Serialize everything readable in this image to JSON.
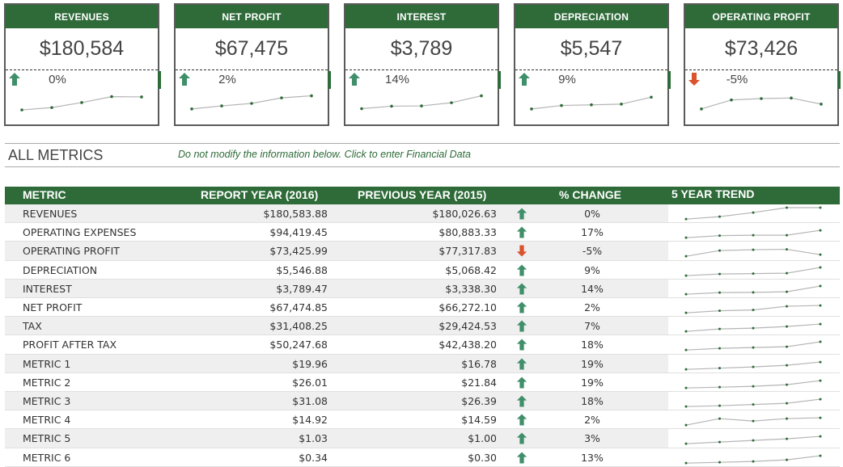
{
  "cards": [
    {
      "title": "REVENUES",
      "value": "$180,584",
      "pct": "0%",
      "dir": "up",
      "trend": [
        2.3,
        4.0,
        7.6,
        11.9,
        11.7
      ]
    },
    {
      "title": "NET PROFIT",
      "value": "$67,475",
      "pct": "2%",
      "dir": "up",
      "trend": [
        3.0,
        5.2,
        7.0,
        11.0,
        12.5
      ]
    },
    {
      "title": "INTEREST",
      "value": "$3,789",
      "pct": "14%",
      "dir": "up",
      "trend": [
        3.2,
        5.0,
        5.2,
        7.5,
        12.5
      ]
    },
    {
      "title": "DEPRECIATION",
      "value": "$5,547",
      "pct": "9%",
      "dir": "up",
      "trend": [
        3.0,
        5.5,
        6.0,
        6.5,
        11.5
      ]
    },
    {
      "title": "OPERATING PROFIT",
      "value": "$73,426",
      "pct": "-5%",
      "dir": "down",
      "trend": [
        3.0,
        9.5,
        10.5,
        10.9,
        6.5
      ]
    }
  ],
  "section": {
    "title": "ALL METRICS",
    "note": "Do not modify the information below. Click to enter Financial Data"
  },
  "table": {
    "headers": {
      "metric": "METRIC",
      "report": "REPORT YEAR (2016)",
      "previous": "PREVIOUS YEAR (2015)",
      "change": "% CHANGE",
      "trend": "5 YEAR TREND"
    },
    "rows": [
      {
        "metric": "REVENUES",
        "report": "$180,583.88",
        "previous": "$180,026.63",
        "dir": "up",
        "pct": "0%",
        "trend": [
          1,
          4,
          9,
          15,
          15
        ]
      },
      {
        "metric": "OPERATING EXPENSES",
        "report": "$94,419.45",
        "previous": "$80,883.33",
        "dir": "up",
        "pct": "17%",
        "trend": [
          1,
          3.5,
          4,
          4,
          10
        ]
      },
      {
        "metric": "OPERATING PROFIT",
        "report": "$73,425.99",
        "previous": "$77,317.83",
        "dir": "down",
        "pct": "-5%",
        "trend": [
          1,
          8,
          9,
          9.5,
          3
        ]
      },
      {
        "metric": "DEPRECIATION",
        "report": "$5,546.88",
        "previous": "$5,068.42",
        "dir": "up",
        "pct": "9%",
        "trend": [
          1,
          3,
          3.5,
          4,
          11
        ]
      },
      {
        "metric": "INTEREST",
        "report": "$3,789.47",
        "previous": "$3,338.30",
        "dir": "up",
        "pct": "14%",
        "trend": [
          1,
          3,
          3.3,
          4,
          11
        ]
      },
      {
        "metric": "NET PROFIT",
        "report": "$67,474.85",
        "previous": "$66,272.10",
        "dir": "up",
        "pct": "2%",
        "trend": [
          1,
          3.5,
          4.5,
          9,
          10
        ]
      },
      {
        "metric": "TAX",
        "report": "$31,408.25",
        "previous": "$29,424.53",
        "dir": "up",
        "pct": "7%",
        "trend": [
          1,
          4,
          5,
          7,
          10
        ]
      },
      {
        "metric": "PROFIT AFTER TAX",
        "report": "$50,247.68",
        "previous": "$42,438.20",
        "dir": "up",
        "pct": "18%",
        "trend": [
          1,
          3,
          4,
          5,
          11
        ]
      },
      {
        "metric": "METRIC 1",
        "report": "$19.96",
        "previous": "$16.78",
        "dir": "up",
        "pct": "19%",
        "trend": [
          1,
          2.5,
          4,
          6,
          10
        ]
      },
      {
        "metric": "METRIC 2",
        "report": "$26.01",
        "previous": "$21.84",
        "dir": "up",
        "pct": "19%",
        "trend": [
          1,
          2,
          3,
          5,
          10
        ]
      },
      {
        "metric": "METRIC 3",
        "report": "$31.08",
        "previous": "$26.39",
        "dir": "up",
        "pct": "18%",
        "trend": [
          1,
          2,
          3.5,
          5,
          10
        ]
      },
      {
        "metric": "METRIC 4",
        "report": "$14.92",
        "previous": "$14.59",
        "dir": "up",
        "pct": "2%",
        "trend": [
          1,
          9,
          6,
          9,
          10
        ]
      },
      {
        "metric": "METRIC 5",
        "report": "$1.03",
        "previous": "$1.00",
        "dir": "up",
        "pct": "3%",
        "trend": [
          1,
          3,
          5,
          7,
          10
        ]
      },
      {
        "metric": "METRIC 6",
        "report": "$0.34",
        "previous": "$0.30",
        "dir": "up",
        "pct": "13%",
        "trend": [
          1,
          2,
          3,
          5,
          10
        ]
      }
    ]
  },
  "colors": {
    "brand_green": "#2e6b39",
    "up_arrow": "#3f8f6a",
    "down_arrow": "#d9532c",
    "spark_line": "#b5b5b5",
    "spark_dot": "#2e6b39"
  },
  "icons": {
    "up": "arrow-up-icon",
    "down": "arrow-down-icon"
  }
}
